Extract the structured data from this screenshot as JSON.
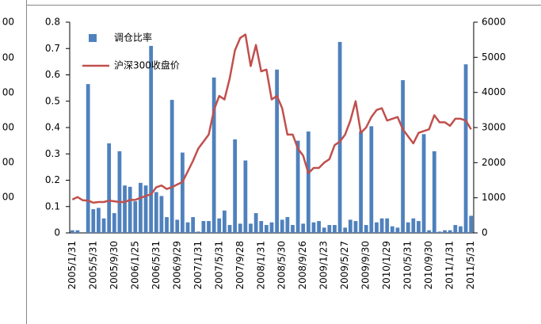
{
  "cropped_axis_labels": [
    "00",
    "00",
    "00",
    "00",
    "00",
    "00"
  ],
  "chart_data": {
    "type": "bar-line",
    "categories": [
      "2005/1/31",
      null,
      null,
      null,
      "2005/5/31",
      null,
      null,
      null,
      "2005/9/30",
      null,
      null,
      null,
      "2006/1/25",
      null,
      null,
      null,
      "2006/5/31",
      null,
      null,
      null,
      "2006/9/29",
      null,
      null,
      null,
      "2007/1/31",
      null,
      null,
      null,
      "2007/5/31",
      null,
      null,
      null,
      "2007/9/28",
      null,
      null,
      null,
      "2008/1/31",
      null,
      null,
      null,
      "2008/5/30",
      null,
      null,
      null,
      "2008/9/26",
      null,
      null,
      null,
      "2009/1/23",
      null,
      null,
      null,
      "2009/5/27",
      null,
      null,
      null,
      "2009/9/30",
      null,
      null,
      null,
      "2010/1/29",
      null,
      null,
      null,
      "2010/5/31",
      null,
      null,
      null,
      "2010/9/30",
      null,
      null,
      null,
      "2011/1/31",
      null,
      null,
      null,
      "2011/5/31"
    ],
    "series": [
      {
        "name": "调仓比率",
        "type": "bar",
        "color": "#4f81bd",
        "axis": "y",
        "values": [
          0.01,
          0.01,
          0,
          0.565,
          0.09,
          0.095,
          0.055,
          0.34,
          0.075,
          0.31,
          0.18,
          0.175,
          0.12,
          0.19,
          0.18,
          0.71,
          0.155,
          0.14,
          0.06,
          0.505,
          0.05,
          0.305,
          0.04,
          0.06,
          0.005,
          0.045,
          0.045,
          0.59,
          0.055,
          0.085,
          0.03,
          0.355,
          0.035,
          0.275,
          0.035,
          0.075,
          0.045,
          0.03,
          0.04,
          0.62,
          0.05,
          0.06,
          0.03,
          0.35,
          0.035,
          0.385,
          0.04,
          0.045,
          0.02,
          0.03,
          0.03,
          0.725,
          0.02,
          0.05,
          0.045,
          0.385,
          0.03,
          0.405,
          0.04,
          0.055,
          0.055,
          0.025,
          0.02,
          0.58,
          0.04,
          0.055,
          0.045,
          0.375,
          0.01,
          0.31,
          0.005,
          0.01,
          0.01,
          0.03,
          0.025,
          0.64,
          0.065
        ]
      },
      {
        "name": "沪深300收盘价",
        "type": "line",
        "color": "#c0504d",
        "axis": "y2",
        "values": [
          950,
          1020,
          930,
          920,
          860,
          880,
          880,
          920,
          900,
          880,
          880,
          940,
          940,
          1000,
          1050,
          1100,
          1300,
          1350,
          1250,
          1300,
          1380,
          1450,
          1750,
          2050,
          2400,
          2600,
          2800,
          3500,
          3900,
          3800,
          4400,
          5200,
          5550,
          5650,
          4750,
          5350,
          4600,
          4650,
          3800,
          3900,
          3550,
          2800,
          2800,
          2400,
          2200,
          1700,
          1850,
          1850,
          2000,
          2100,
          2500,
          2600,
          2800,
          3200,
          3750,
          2850,
          3000,
          3300,
          3500,
          3550,
          3200,
          3250,
          3300,
          2950,
          2750,
          2550,
          2850,
          2900,
          2950,
          3350,
          3150,
          3150,
          3050,
          3250,
          3250,
          3200,
          2950
        ]
      }
    ],
    "ylim": [
      0,
      0.8
    ],
    "yticks": [
      0,
      0.1,
      0.2,
      0.3,
      0.4,
      0.5,
      0.6,
      0.7,
      0.8
    ],
    "y2lim": [
      0,
      6000
    ],
    "y2ticks": [
      0,
      1000,
      2000,
      3000,
      4000,
      5000,
      6000
    ],
    "legend": "top-left"
  }
}
